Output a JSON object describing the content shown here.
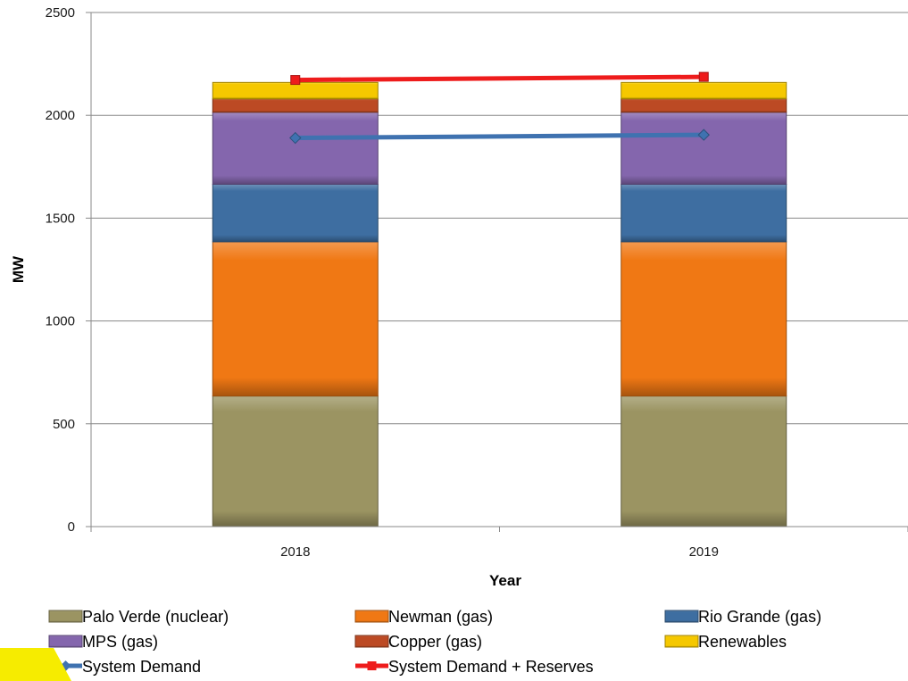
{
  "chart_data": {
    "type": "bar",
    "stacked": true,
    "categories": [
      "2018",
      "2019"
    ],
    "xlabel": "Year",
    "ylabel": "MW",
    "ylim": [
      0,
      2500
    ],
    "yticks": [
      0,
      500,
      1000,
      1500,
      2000,
      2500
    ],
    "grid": true,
    "legend_position": "bottom",
    "series": [
      {
        "name": "Palo Verde (nuclear)",
        "values": [
          635,
          635
        ],
        "color": "#9b9462"
      },
      {
        "name": "Newman (gas)",
        "values": [
          750,
          750
        ],
        "color": "#f07814"
      },
      {
        "name": "Rio Grande (gas)",
        "values": [
          280,
          280
        ],
        "color": "#3e6ea1"
      },
      {
        "name": "MPS (gas)",
        "values": [
          350,
          350
        ],
        "color": "#8466ad"
      },
      {
        "name": "Copper (gas)",
        "values": [
          65,
          65
        ],
        "color": "#bc4a24"
      },
      {
        "name": "Renewables",
        "values": [
          80,
          80
        ],
        "color": "#f5c800"
      }
    ],
    "lines": [
      {
        "name": "System Demand",
        "values": [
          1890,
          1905
        ],
        "color": "#3f72b0",
        "marker": "diamond"
      },
      {
        "name": "System Demand + Reserves",
        "values": [
          2172,
          2187
        ],
        "color": "#ee1c1c",
        "marker": "square"
      }
    ]
  }
}
